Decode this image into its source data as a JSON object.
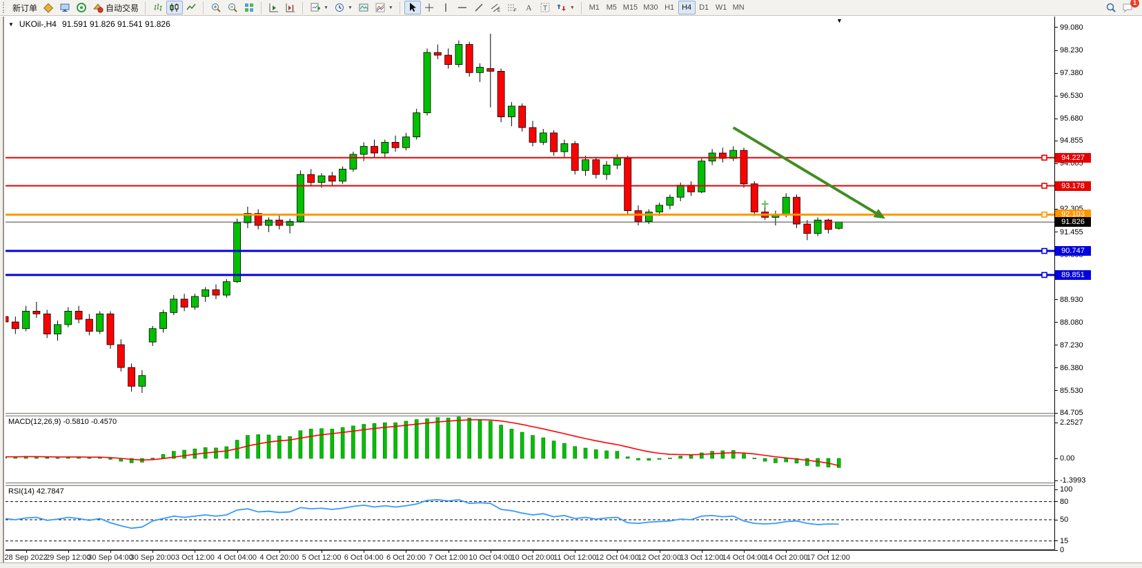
{
  "toolbar": {
    "new_order_label": "新订单",
    "autotrade_label": "自动交易",
    "timeframes": [
      "M1",
      "M5",
      "M15",
      "M30",
      "H1",
      "H4",
      "D1",
      "W1",
      "MN"
    ],
    "active_timeframe": "H4",
    "notification_count": "1"
  },
  "chart": {
    "symbol_period": "UKOil-,H4",
    "ohlc": "91.591 91.826 91.541 91.826"
  },
  "price_axis": {
    "ticks": [
      {
        "label": "99.080",
        "price": 99.08
      },
      {
        "label": "98.230",
        "price": 98.23
      },
      {
        "label": "97.380",
        "price": 97.38
      },
      {
        "label": "96.530",
        "price": 96.53
      },
      {
        "label": "95.680",
        "price": 95.68
      },
      {
        "label": "94.855",
        "price": 94.855
      },
      {
        "label": "94.005",
        "price": 94.005
      },
      {
        "label": "92.305",
        "price": 92.305
      },
      {
        "label": "91.455",
        "price": 91.455
      },
      {
        "label": "90.605",
        "price": 90.605
      },
      {
        "label": "89.755",
        "price": 89.755
      },
      {
        "label": "88.930",
        "price": 88.93
      },
      {
        "label": "88.080",
        "price": 88.08
      },
      {
        "label": "87.230",
        "price": 87.23
      },
      {
        "label": "86.380",
        "price": 86.38
      },
      {
        "label": "85.530",
        "price": 85.53
      },
      {
        "label": "84.705",
        "price": 84.705
      }
    ]
  },
  "macd": {
    "name": "MACD(12,26,9)",
    "values": "-0.5810 -0.4570",
    "axis": [
      {
        "label": "2.2527",
        "value": 2.2527
      },
      {
        "label": "0.00",
        "value": 0
      },
      {
        "label": "-1.3993",
        "value": -1.3993
      }
    ]
  },
  "rsi": {
    "name": "RSI(14)",
    "value": "42.7847",
    "axis": [
      {
        "label": "100",
        "value": 100
      },
      {
        "label": "80",
        "value": 80
      },
      {
        "label": "50",
        "value": 50
      },
      {
        "label": "15",
        "value": 15
      },
      {
        "label": "0",
        "value": 0
      }
    ],
    "dashed_levels": [
      80,
      50,
      15
    ]
  },
  "time_axis": {
    "labels": [
      "28 Sep 2022",
      "29 Sep 12:00",
      "30 Sep 04:00",
      "30 Sep 20:00",
      "3 Oct 12:00",
      "4 Oct 04:00",
      "4 Oct 20:00",
      "5 Oct 12:00",
      "6 Oct 04:00",
      "6 Oct 20:00",
      "7 Oct 12:00",
      "10 Oct 04:00",
      "10 Oct 20:00",
      "11 Oct 12:00",
      "12 Oct 04:00",
      "12 Oct 20:00",
      "13 Oct 12:00",
      "14 Oct 04:00",
      "14 Oct 20:00",
      "17 Oct 12:00"
    ]
  },
  "chart_data": {
    "type": "candlestick",
    "symbol": "UKOil-",
    "timeframe": "H4",
    "ylim": [
      84.705,
      99.08
    ],
    "macd_axis_range": [
      -1.3993,
      2.2527
    ],
    "rsi_axis_range": [
      0,
      100
    ],
    "colors": {
      "bull": "#00C000",
      "bear": "#FF0000",
      "wick": "#000000",
      "macd_hist": "#00C000",
      "macd_signal": "#FF0000",
      "rsi_line": "#3399FF",
      "trendline": "#3E8E22",
      "plus_marker": "#66BB55"
    },
    "levels": [
      {
        "label": "94.227",
        "price": 94.227,
        "color": "#E60000",
        "width": 2,
        "handle": true,
        "badge": "#E60000"
      },
      {
        "label": "93.178",
        "price": 93.178,
        "color": "#E60000",
        "width": 2,
        "handle": true,
        "badge": "#E60000"
      },
      {
        "label": "92.103",
        "price": 92.103,
        "color": "#FF9500",
        "width": 3,
        "handle": true,
        "badge": "#FF9500"
      },
      {
        "label": "91.826",
        "price": 91.826,
        "color": "#404040",
        "width": 1,
        "handle": false,
        "badge": "#000000"
      },
      {
        "label": "90.747",
        "price": 90.747,
        "color": "#0000E0",
        "width": 3,
        "handle": true,
        "badge": "#0000E0"
      },
      {
        "label": "89.851",
        "price": 89.851,
        "color": "#0000E0",
        "width": 3,
        "handle": true,
        "badge": "#0000E0"
      }
    ],
    "trendline": {
      "from_index": 69,
      "from_price": 95.35,
      "to_index": 83.4,
      "to_price": 91.95
    },
    "plus_marker": {
      "index": 72,
      "price": 92.5
    },
    "candles": [
      [
        88.3,
        88.55,
        87.95,
        88.1
      ],
      [
        88.1,
        88.3,
        87.65,
        87.85
      ],
      [
        87.85,
        88.7,
        87.75,
        88.5
      ],
      [
        88.5,
        88.85,
        88.25,
        88.4
      ],
      [
        88.4,
        88.55,
        87.5,
        87.65
      ],
      [
        87.65,
        88.15,
        87.4,
        88.0
      ],
      [
        88.0,
        88.65,
        87.9,
        88.5
      ],
      [
        88.5,
        88.7,
        88.05,
        88.2
      ],
      [
        88.2,
        88.4,
        87.6,
        87.75
      ],
      [
        87.75,
        88.5,
        87.65,
        88.4
      ],
      [
        88.4,
        88.5,
        87.1,
        87.25
      ],
      [
        87.25,
        87.45,
        86.25,
        86.4
      ],
      [
        86.4,
        86.55,
        85.5,
        85.7
      ],
      [
        85.7,
        86.3,
        85.45,
        86.1
      ],
      [
        87.35,
        87.95,
        87.2,
        87.85
      ],
      [
        87.85,
        88.55,
        87.7,
        88.45
      ],
      [
        88.45,
        89.1,
        88.35,
        88.95
      ],
      [
        88.95,
        89.15,
        88.5,
        88.65
      ],
      [
        88.65,
        89.15,
        88.55,
        89.05
      ],
      [
        89.05,
        89.4,
        88.85,
        89.3
      ],
      [
        89.3,
        89.5,
        88.95,
        89.1
      ],
      [
        89.1,
        89.7,
        89.0,
        89.6
      ],
      [
        89.6,
        91.95,
        89.55,
        91.8
      ],
      [
        91.8,
        92.4,
        91.6,
        92.15
      ],
      [
        92.15,
        92.3,
        91.55,
        91.7
      ],
      [
        91.7,
        92.0,
        91.45,
        91.9
      ],
      [
        91.9,
        92.1,
        91.55,
        91.7
      ],
      [
        91.7,
        91.95,
        91.4,
        91.85
      ],
      [
        91.85,
        93.75,
        91.8,
        93.6
      ],
      [
        93.6,
        93.8,
        93.15,
        93.3
      ],
      [
        93.3,
        93.65,
        93.1,
        93.55
      ],
      [
        93.55,
        93.7,
        93.2,
        93.35
      ],
      [
        93.35,
        93.9,
        93.25,
        93.8
      ],
      [
        93.8,
        94.45,
        93.7,
        94.35
      ],
      [
        94.35,
        94.8,
        94.1,
        94.65
      ],
      [
        94.65,
        94.9,
        94.25,
        94.4
      ],
      [
        94.4,
        94.9,
        94.2,
        94.8
      ],
      [
        94.8,
        95.05,
        94.45,
        94.6
      ],
      [
        94.6,
        95.15,
        94.5,
        95.0
      ],
      [
        95.0,
        96.05,
        94.9,
        95.9
      ],
      [
        95.9,
        98.3,
        95.8,
        98.15
      ],
      [
        98.15,
        98.45,
        97.9,
        98.05
      ],
      [
        98.05,
        98.3,
        97.55,
        97.7
      ],
      [
        97.7,
        98.6,
        97.6,
        98.45
      ],
      [
        98.45,
        98.55,
        97.25,
        97.4
      ],
      [
        97.4,
        97.75,
        97.05,
        97.6
      ],
      [
        97.55,
        98.85,
        96.1,
        97.45
      ],
      [
        97.45,
        97.55,
        95.55,
        95.75
      ],
      [
        95.75,
        96.3,
        95.4,
        96.15
      ],
      [
        96.15,
        96.25,
        95.2,
        95.35
      ],
      [
        95.35,
        95.6,
        94.65,
        94.8
      ],
      [
        94.8,
        95.3,
        94.7,
        95.15
      ],
      [
        95.15,
        95.25,
        94.3,
        94.45
      ],
      [
        94.45,
        94.9,
        94.25,
        94.75
      ],
      [
        94.75,
        94.85,
        93.6,
        93.75
      ],
      [
        93.75,
        94.3,
        93.55,
        94.15
      ],
      [
        94.15,
        94.25,
        93.45,
        93.6
      ],
      [
        93.6,
        94.1,
        93.4,
        93.95
      ],
      [
        93.95,
        94.35,
        93.8,
        94.2
      ],
      [
        94.2,
        94.3,
        92.1,
        92.25
      ],
      [
        92.25,
        92.45,
        91.7,
        91.85
      ],
      [
        91.85,
        92.3,
        91.75,
        92.2
      ],
      [
        92.2,
        92.55,
        92.05,
        92.45
      ],
      [
        92.45,
        92.85,
        92.3,
        92.75
      ],
      [
        92.75,
        93.3,
        92.6,
        93.2
      ],
      [
        93.2,
        93.35,
        92.8,
        92.95
      ],
      [
        92.95,
        94.2,
        92.9,
        94.1
      ],
      [
        94.1,
        94.55,
        93.95,
        94.4
      ],
      [
        94.4,
        94.6,
        94.05,
        94.2
      ],
      [
        94.2,
        94.65,
        94.1,
        94.5
      ],
      [
        94.5,
        94.6,
        93.1,
        93.25
      ],
      [
        93.25,
        93.35,
        92.05,
        92.2
      ],
      [
        92.2,
        92.5,
        91.9,
        92.0
      ],
      [
        92.0,
        92.25,
        91.7,
        92.1
      ],
      [
        92.1,
        92.9,
        92.0,
        92.75
      ],
      [
        92.75,
        92.85,
        91.6,
        91.75
      ],
      [
        91.75,
        91.9,
        91.15,
        91.4
      ],
      [
        91.4,
        92.0,
        91.3,
        91.9
      ],
      [
        91.9,
        91.95,
        91.4,
        91.55
      ],
      [
        91.591,
        91.826,
        91.541,
        91.826
      ]
    ],
    "macd_main": [
      0.12,
      0.1,
      0.14,
      0.12,
      0.05,
      0.04,
      0.1,
      0.1,
      0.04,
      0.08,
      -0.06,
      -0.18,
      -0.28,
      -0.24,
      0.02,
      0.25,
      0.45,
      0.52,
      0.6,
      0.68,
      0.66,
      0.74,
      1.15,
      1.45,
      1.5,
      1.48,
      1.42,
      1.38,
      1.75,
      1.85,
      1.88,
      1.85,
      1.95,
      2.05,
      2.15,
      2.2,
      2.25,
      2.25,
      2.35,
      2.45,
      2.5,
      2.58,
      2.55,
      2.62,
      2.55,
      2.45,
      2.35,
      2.1,
      1.85,
      1.65,
      1.45,
      1.3,
      1.1,
      0.95,
      0.75,
      0.65,
      0.55,
      0.48,
      0.45,
      0.1,
      -0.1,
      -0.12,
      -0.06,
      0.02,
      0.15,
      0.18,
      0.35,
      0.45,
      0.48,
      0.5,
      0.28,
      0.02,
      -0.18,
      -0.28,
      -0.22,
      -0.3,
      -0.45,
      -0.5,
      -0.55,
      -0.581
    ],
    "macd_signal": [
      0.1,
      0.1,
      0.11,
      0.11,
      0.1,
      0.09,
      0.09,
      0.09,
      0.08,
      0.08,
      0.05,
      0.0,
      -0.06,
      -0.1,
      -0.08,
      -0.01,
      0.08,
      0.17,
      0.26,
      0.34,
      0.41,
      0.47,
      0.61,
      0.78,
      0.92,
      1.03,
      1.11,
      1.16,
      1.28,
      1.39,
      1.49,
      1.56,
      1.64,
      1.72,
      1.81,
      1.89,
      1.96,
      2.02,
      2.09,
      2.16,
      2.23,
      2.3,
      2.35,
      2.4,
      2.43,
      2.44,
      2.42,
      2.36,
      2.26,
      2.14,
      2.0,
      1.86,
      1.71,
      1.56,
      1.4,
      1.25,
      1.11,
      0.98,
      0.87,
      0.72,
      0.56,
      0.42,
      0.32,
      0.26,
      0.24,
      0.23,
      0.25,
      0.29,
      0.33,
      0.36,
      0.34,
      0.28,
      0.19,
      0.1,
      0.03,
      -0.04,
      -0.12,
      -0.2,
      -0.3,
      -0.457
    ],
    "rsi": [
      52,
      50,
      53,
      54,
      49,
      51,
      54,
      52,
      49,
      52,
      45,
      40,
      36,
      38,
      48,
      52,
      56,
      54,
      56,
      58,
      56,
      58,
      66,
      68,
      63,
      64,
      62,
      63,
      70,
      68,
      69,
      67,
      69,
      72,
      74,
      71,
      73,
      71,
      73,
      76,
      82,
      83,
      81,
      83,
      77,
      78,
      77,
      67,
      65,
      61,
      58,
      60,
      55,
      57,
      52,
      54,
      51,
      53,
      54,
      45,
      44,
      46,
      47,
      48,
      51,
      50,
      56,
      57,
      55,
      56,
      48,
      44,
      43,
      44,
      47,
      48,
      44,
      42,
      43,
      42.78
    ]
  }
}
